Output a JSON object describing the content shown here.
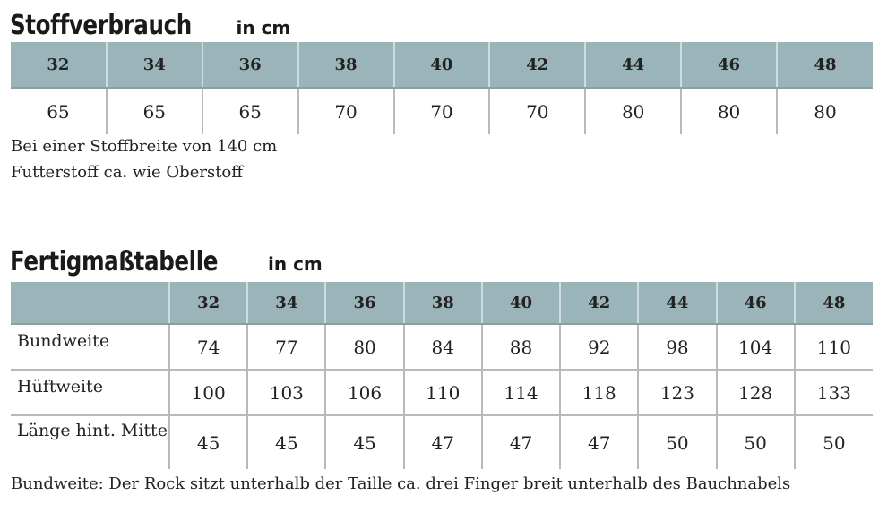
{
  "consumption": {
    "title": "Stoffverbrauch",
    "unit": "in cm",
    "sizes": [
      "32",
      "34",
      "36",
      "38",
      "40",
      "42",
      "44",
      "46",
      "48"
    ],
    "values": [
      "65",
      "65",
      "65",
      "70",
      "70",
      "70",
      "80",
      "80",
      "80"
    ],
    "notes": [
      "Bei einer Stoffbreite von 140 cm",
      "Futterstoff ca. wie Oberstoff"
    ]
  },
  "measurements": {
    "title": "Fertigmaßtabelle",
    "unit": "in cm",
    "sizes": [
      "32",
      "34",
      "36",
      "38",
      "40",
      "42",
      "44",
      "46",
      "48"
    ],
    "rows": [
      {
        "label": "Bundweite",
        "values": [
          "74",
          "77",
          "80",
          "84",
          "88",
          "92",
          "98",
          "104",
          "110"
        ]
      },
      {
        "label": "Hüftweite",
        "values": [
          "100",
          "103",
          "106",
          "110",
          "114",
          "118",
          "123",
          "128",
          "133"
        ]
      },
      {
        "label": "Länge hint. Mitte",
        "values": [
          "45",
          "45",
          "45",
          "47",
          "47",
          "47",
          "50",
          "50",
          "50"
        ]
      }
    ],
    "footnote": "Bundweite: Der Rock sitzt unterhalb der Taille ca. drei Finger breit unterhalb des Bauchnabels"
  },
  "colors": {
    "header_fill": "#9bb4b9",
    "grid_line": "#b9b9b9",
    "text": "#222222"
  }
}
